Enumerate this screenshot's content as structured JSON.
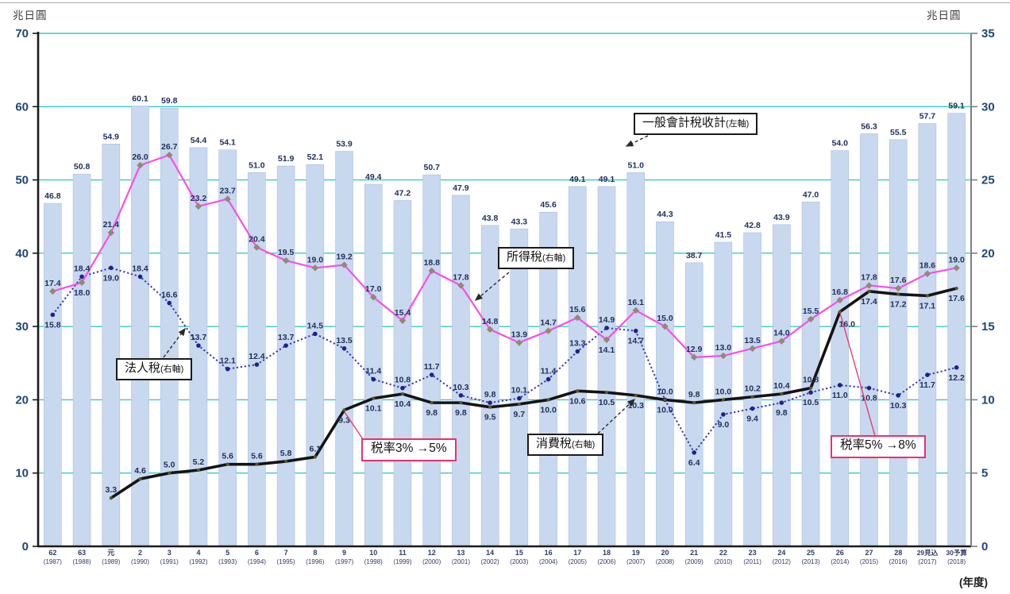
{
  "page": {
    "unit_left": "兆日圓",
    "unit_right": "兆日圓",
    "x_axis_unit": "(年度)"
  },
  "chart_data": {
    "type": "bar",
    "subtype": "bar+line combo, dual axis",
    "x": {
      "era_labels": [
        "62",
        "63",
        "元",
        "2",
        "3",
        "4",
        "5",
        "6",
        "7",
        "8",
        "9",
        "10",
        "11",
        "12",
        "13",
        "14",
        "15",
        "16",
        "17",
        "18",
        "19",
        "20",
        "21",
        "22",
        "23",
        "24",
        "25",
        "26",
        "27",
        "28",
        "29見込",
        "30予算"
      ],
      "year_labels": [
        "(1987)",
        "(1988)",
        "(1989)",
        "(1990)",
        "(1991)",
        "(1992)",
        "(1993)",
        "(1994)",
        "(1995)",
        "(1996)",
        "(1997)",
        "(1998)",
        "(1999)",
        "(2000)",
        "(2001)",
        "(2002)",
        "(2003)",
        "(2004)",
        "(2005)",
        "(2006)",
        "(2007)",
        "(2008)",
        "(2009)",
        "(2010)",
        "(2011)",
        "(2012)",
        "(2013)",
        "(2014)",
        "(2015)",
        "(2016)",
        "(2017)",
        "(2018)"
      ]
    },
    "axes": {
      "left": {
        "min": 0,
        "max": 70,
        "step": 10,
        "unit": "兆日圓"
      },
      "right": {
        "min": 0,
        "max": 35,
        "step": 5,
        "unit": "兆日圓"
      }
    },
    "grid": {
      "on": true,
      "color": "#35cbca"
    },
    "series": [
      {
        "name": "一般會計稅收計",
        "axis_note": "(左軸)",
        "type": "bar",
        "axis": "left",
        "color": "#c8d8ef",
        "values": [
          46.8,
          50.8,
          54.9,
          60.1,
          59.8,
          54.4,
          54.1,
          51.0,
          51.9,
          52.1,
          53.9,
          49.4,
          47.2,
          50.7,
          47.9,
          43.8,
          43.3,
          45.6,
          49.1,
          49.1,
          51.0,
          44.3,
          38.7,
          41.5,
          42.8,
          43.9,
          47.0,
          54.0,
          56.3,
          55.5,
          57.7,
          59.1
        ]
      },
      {
        "name": "所得稅",
        "axis_note": "(右軸)",
        "type": "line",
        "axis": "right",
        "line_style": "solid",
        "color": "#f84fe8",
        "marker": "diamond",
        "marker_color": "#938872",
        "values": [
          17.4,
          18.0,
          21.4,
          26.0,
          26.7,
          23.2,
          23.7,
          20.4,
          19.5,
          19.0,
          19.2,
          17.0,
          15.4,
          18.8,
          17.8,
          14.8,
          13.9,
          14.7,
          15.6,
          14.1,
          16.1,
          15.0,
          12.9,
          13.0,
          13.5,
          14.0,
          15.5,
          16.8,
          17.8,
          17.6,
          18.6,
          19.0
        ],
        "label_side": "abaaaaaaaaaaaaaaaaabaaaaaaaaaaaa"
      },
      {
        "name": "法人稅",
        "axis_note": "(右軸)",
        "type": "line",
        "axis": "right",
        "line_style": "dotted",
        "color": "#3838b0",
        "marker": "circle",
        "marker_color": "#20208c",
        "values": [
          15.8,
          18.4,
          19.0,
          18.4,
          16.6,
          13.7,
          12.1,
          12.4,
          13.7,
          14.5,
          13.5,
          11.4,
          10.8,
          11.7,
          10.3,
          9.8,
          10.1,
          11.4,
          13.3,
          14.9,
          14.7,
          10.0,
          6.4,
          9.0,
          9.4,
          9.8,
          10.5,
          11.0,
          10.8,
          10.3,
          11.7,
          12.2
        ],
        "label_side": "babaaaaaaaaaaaaaaaaababbbbbbbbbb"
      },
      {
        "name": "消費稅",
        "axis_note": "(右軸)",
        "type": "line",
        "axis": "right",
        "line_style": "solid-thick",
        "color": "#141414",
        "marker": "circle",
        "marker_color": "#5a5526",
        "values": [
          null,
          null,
          3.3,
          4.6,
          5.0,
          5.2,
          5.6,
          5.6,
          5.8,
          6.1,
          9.3,
          10.1,
          10.4,
          9.8,
          9.8,
          9.5,
          9.7,
          10.0,
          10.6,
          10.5,
          10.3,
          10.0,
          9.8,
          10.0,
          10.2,
          10.4,
          10.8,
          16.0,
          17.4,
          17.2,
          17.1,
          17.6
        ],
        "label_side": "----------bbbbbbbbbbbbaaaaarbbbb"
      }
    ],
    "annotations": [
      {
        "label": "一般會計稅收計",
        "suffix": "(左軸)",
        "box": "black"
      },
      {
        "label": "所得稅",
        "suffix": "(右軸)",
        "box": "black"
      },
      {
        "label": "法人稅",
        "suffix": "(右軸)",
        "box": "black"
      },
      {
        "label": "消費稅",
        "suffix": "(右軸)",
        "box": "black"
      },
      {
        "label": "税率3% →5%",
        "box": "pink"
      },
      {
        "label": "税率5% →8%",
        "box": "pink"
      }
    ]
  }
}
